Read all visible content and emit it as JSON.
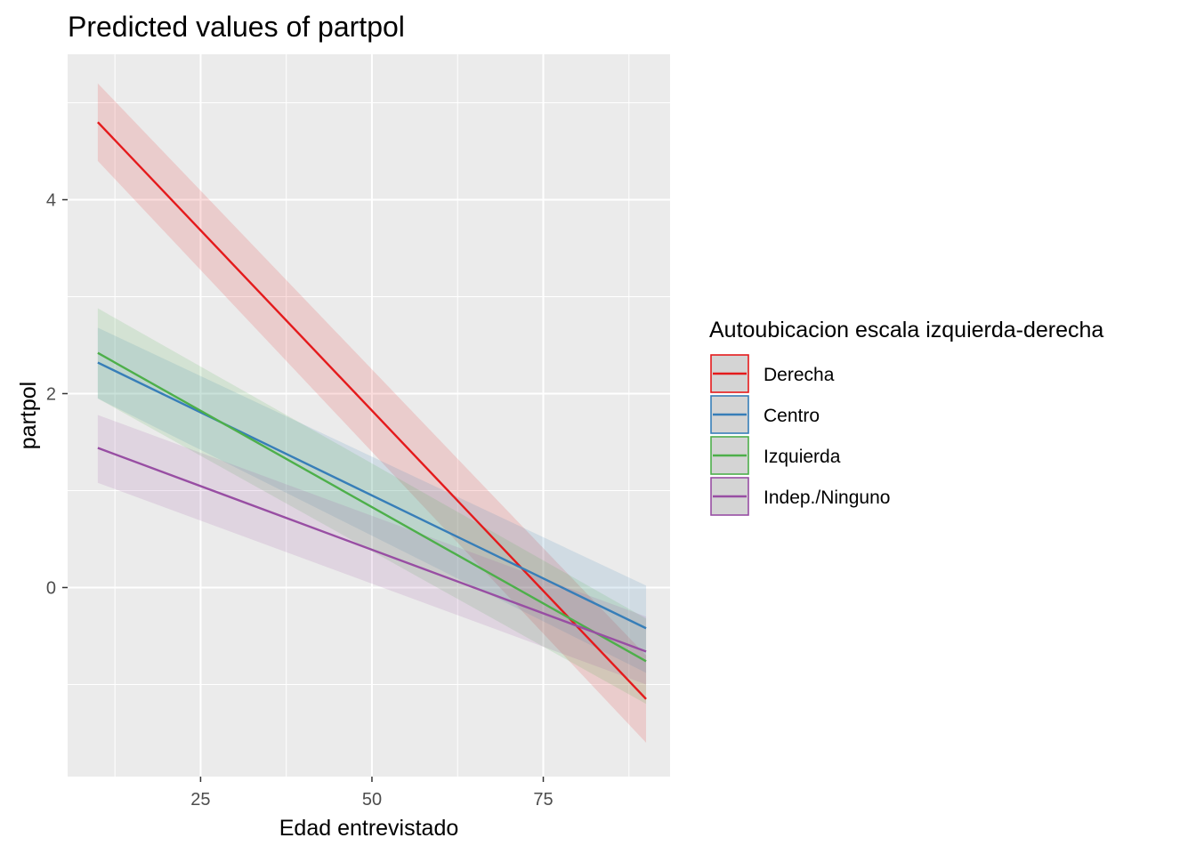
{
  "chart_data": {
    "type": "line",
    "title": "Predicted values of partpol",
    "xlabel": "Edad entrevistado",
    "ylabel": "partpol",
    "xlim": [
      5.6,
      93.5
    ],
    "ylim": [
      -1.95,
      5.5
    ],
    "x_ticks": [
      25,
      50,
      75
    ],
    "y_ticks": [
      0,
      2,
      4
    ],
    "x_minor": [
      12.5,
      37.5,
      62.5,
      87.5
    ],
    "y_minor": [
      -1,
      1,
      3,
      5
    ],
    "grid": true,
    "legend": {
      "title": "Autoubicacion escala izquierda-derecha",
      "position": "right"
    },
    "series": [
      {
        "name": "Derecha",
        "color": "#e41a1c",
        "x": [
          10,
          90
        ],
        "y": [
          4.8,
          -1.15
        ],
        "lower": [
          4.4,
          -1.6
        ],
        "upper": [
          5.2,
          -0.7
        ]
      },
      {
        "name": "Centro",
        "color": "#377eb8",
        "x": [
          10,
          90
        ],
        "y": [
          2.32,
          -0.42
        ],
        "lower": [
          1.95,
          -0.88
        ],
        "upper": [
          2.68,
          0.02
        ]
      },
      {
        "name": "Izquierda",
        "color": "#4daf4a",
        "x": [
          10,
          90
        ],
        "y": [
          2.42,
          -0.76
        ],
        "lower": [
          1.95,
          -1.2
        ],
        "upper": [
          2.88,
          -0.32
        ]
      },
      {
        "name": "Indep./Ninguno",
        "color": "#984ea3",
        "x": [
          10,
          90
        ],
        "y": [
          1.44,
          -0.66
        ],
        "lower": [
          1.08,
          -1.0
        ],
        "upper": [
          1.78,
          -0.3
        ]
      }
    ]
  }
}
